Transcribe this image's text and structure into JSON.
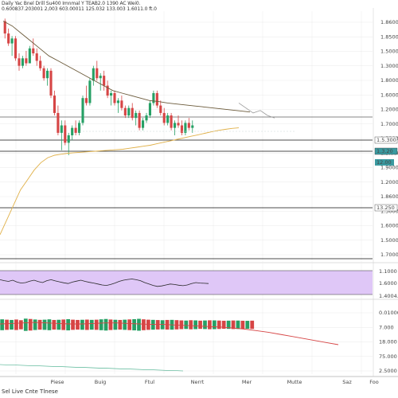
{
  "header": {
    "line1": "Daily Yac Bnel Drill  Su400  Imnmal Y TEAB2.0 1390 AC Wei0.",
    "line2": "0.600837.203001 2,003  603.00011 125.032 133.003 1.6011.0 ft.0"
  },
  "footer": {
    "text": "Sel Live  Cnte  Tlnese"
  },
  "colors": {
    "up": "#26a065",
    "down": "#d64545",
    "ma_long": "#e0b048",
    "ma_short": "#6b5a3a",
    "rsi_band": "#dfc7f7",
    "rsi_line": "#2a2a2a",
    "volume_ma": "#d64545",
    "volume_base": "#2aa37a",
    "grid": "#e9e9e9",
    "level_line": "#111111",
    "tag_teal": "#3a9aa0",
    "tag_dark": "#222222"
  },
  "chart_data": [
    {
      "type": "candlestick",
      "panel": "price",
      "title": "",
      "y_axis_labels": [
        "1.8600",
        "1.8500",
        "1.5000",
        "1.3000",
        "1.8000",
        "1.6000",
        "1.2000",
        "1.7000",
        "1.5200",
        "1.3.000",
        "1.9000",
        "1.2000",
        "1.8600",
        "1.3000",
        "1.6000",
        "1.5000",
        "1.7000"
      ],
      "price_tags": [
        "1.5.300",
        "12.00",
        "1.3.20",
        "13.250"
      ],
      "x_axis_labels": [
        "Piese",
        "Buig",
        "Ftul",
        "Nerrt",
        "Mer",
        "Mutte",
        "Saz",
        "Foo"
      ],
      "ylim": [
        1.45,
        1.95
      ],
      "grid": true,
      "candles": [
        [
          1.93,
          1.935,
          1.895,
          1.905
        ],
        [
          1.905,
          1.915,
          1.88,
          1.885
        ],
        [
          1.885,
          1.9,
          1.86,
          1.895
        ],
        [
          1.895,
          1.9,
          1.85,
          1.855
        ],
        [
          1.855,
          1.865,
          1.83,
          1.84
        ],
        [
          1.84,
          1.86,
          1.835,
          1.855
        ],
        [
          1.855,
          1.87,
          1.84,
          1.845
        ],
        [
          1.845,
          1.88,
          1.845,
          1.875
        ],
        [
          1.875,
          1.895,
          1.86,
          1.865
        ],
        [
          1.865,
          1.875,
          1.84,
          1.85
        ],
        [
          1.85,
          1.86,
          1.83,
          1.835
        ],
        [
          1.835,
          1.84,
          1.81,
          1.815
        ],
        [
          1.815,
          1.835,
          1.8,
          1.83
        ],
        [
          1.83,
          1.835,
          1.775,
          1.78
        ],
        [
          1.78,
          1.79,
          1.74,
          1.745
        ],
        [
          1.745,
          1.76,
          1.7,
          1.705
        ],
        [
          1.705,
          1.73,
          1.67,
          1.72
        ],
        [
          1.72,
          1.73,
          1.68,
          1.685
        ],
        [
          1.685,
          1.705,
          1.66,
          1.7
        ],
        [
          1.7,
          1.72,
          1.69,
          1.715
        ],
        [
          1.715,
          1.73,
          1.7,
          1.705
        ],
        [
          1.705,
          1.73,
          1.7,
          1.725
        ],
        [
          1.725,
          1.78,
          1.72,
          1.775
        ],
        [
          1.775,
          1.8,
          1.76,
          1.765
        ],
        [
          1.765,
          1.815,
          1.76,
          1.81
        ],
        [
          1.81,
          1.84,
          1.8,
          1.835
        ],
        [
          1.835,
          1.85,
          1.81,
          1.815
        ],
        [
          1.815,
          1.825,
          1.79,
          1.82
        ],
        [
          1.82,
          1.83,
          1.79,
          1.8
        ],
        [
          1.8,
          1.81,
          1.775,
          1.78
        ],
        [
          1.78,
          1.79,
          1.76,
          1.785
        ],
        [
          1.785,
          1.79,
          1.76,
          1.765
        ],
        [
          1.765,
          1.775,
          1.745,
          1.77
        ],
        [
          1.77,
          1.78,
          1.75,
          1.755
        ],
        [
          1.755,
          1.76,
          1.735,
          1.74
        ],
        [
          1.74,
          1.76,
          1.735,
          1.755
        ],
        [
          1.755,
          1.765,
          1.73,
          1.735
        ],
        [
          1.735,
          1.75,
          1.72,
          1.745
        ],
        [
          1.745,
          1.75,
          1.71,
          1.715
        ],
        [
          1.715,
          1.735,
          1.71,
          1.73
        ],
        [
          1.73,
          1.745,
          1.725,
          1.74
        ],
        [
          1.74,
          1.77,
          1.735,
          1.765
        ],
        [
          1.765,
          1.79,
          1.76,
          1.785
        ],
        [
          1.785,
          1.79,
          1.755,
          1.76
        ],
        [
          1.76,
          1.77,
          1.74,
          1.745
        ],
        [
          1.745,
          1.755,
          1.72,
          1.725
        ],
        [
          1.725,
          1.745,
          1.72,
          1.74
        ],
        [
          1.74,
          1.745,
          1.71,
          1.715
        ],
        [
          1.715,
          1.73,
          1.7,
          1.725
        ],
        [
          1.725,
          1.74,
          1.715,
          1.72
        ],
        [
          1.72,
          1.73,
          1.7,
          1.705
        ],
        [
          1.705,
          1.73,
          1.7,
          1.725
        ],
        [
          1.725,
          1.735,
          1.71,
          1.715
        ],
        [
          1.715,
          1.73,
          1.705,
          1.72
        ]
      ],
      "overlays": [
        {
          "name": "",
          "kind": "ma_long",
          "values": [
            1.5,
            1.53,
            1.56,
            1.59,
            1.61,
            1.63,
            1.645,
            1.655,
            1.66,
            1.662,
            1.664,
            1.665,
            1.666,
            1.667,
            1.668,
            1.669,
            1.67,
            1.671,
            1.672,
            1.674,
            1.676,
            1.678,
            1.68,
            1.683,
            1.686,
            1.689,
            1.692,
            1.695,
            1.698,
            1.701,
            1.704,
            1.707,
            1.71,
            1.712,
            1.714,
            1.715
          ]
        },
        {
          "name": "",
          "kind": "ma_short",
          "values": [
            1.93,
            1.92,
            1.905,
            1.89,
            1.875,
            1.86,
            1.85,
            1.84,
            1.83,
            1.82,
            1.81,
            1.8,
            1.79,
            1.785,
            1.78,
            1.775,
            1.77,
            1.768,
            1.765,
            1.763,
            1.761,
            1.759,
            1.757,
            1.755,
            1.753,
            1.751,
            1.749,
            1.747
          ]
        }
      ],
      "forecast_path": [
        1.765,
        1.755,
        1.745,
        1.75,
        1.74,
        1.735
      ]
    },
    {
      "type": "line",
      "panel": "rsi",
      "y_axis_labels": [
        "1.1000",
        "1.6000",
        "1.4004.0"
      ],
      "values": [
        0.62,
        0.58,
        0.55,
        0.6,
        0.52,
        0.48,
        0.5,
        0.56,
        0.6,
        0.54,
        0.5,
        0.58,
        0.62,
        0.57,
        0.53,
        0.49,
        0.46,
        0.52,
        0.56,
        0.6,
        0.55,
        0.51,
        0.48,
        0.44,
        0.4,
        0.38,
        0.42,
        0.48,
        0.55,
        0.6,
        0.63,
        0.65,
        0.62,
        0.58,
        0.5,
        0.44,
        0.38,
        0.34,
        0.36,
        0.4,
        0.44,
        0.42,
        0.39,
        0.37,
        0.4,
        0.46,
        0.5,
        0.48,
        0.47,
        0.46
      ]
    },
    {
      "type": "bar",
      "panel": "volume",
      "y_axis_labels": [
        "0.01000",
        "7.000",
        "18.000",
        "75.000",
        "2.5000"
      ],
      "values": [
        0.62,
        0.58,
        0.55,
        0.6,
        0.52,
        0.7,
        0.66,
        0.6,
        0.56,
        0.58,
        0.62,
        0.55,
        0.57,
        0.6,
        0.64,
        0.58,
        0.55,
        0.57,
        0.59,
        0.56,
        0.58,
        0.62,
        0.66,
        0.6,
        0.57,
        0.55,
        0.58,
        0.61,
        0.64,
        0.68,
        0.62,
        0.58,
        0.56,
        0.54,
        0.52,
        0.55,
        0.56,
        0.53,
        0.5,
        0.48,
        0.52,
        0.5,
        0.47,
        0.49,
        0.51,
        0.5,
        0.48,
        0.46,
        0.47,
        0.49,
        0.48,
        0.46,
        0.45,
        0.47
      ],
      "up_flags": [
        1,
        0,
        1,
        0,
        0,
        1,
        0,
        1,
        0,
        1,
        1,
        0,
        1,
        0,
        1,
        0,
        0,
        1,
        0,
        1,
        0,
        1,
        1,
        0,
        1,
        0,
        1,
        0,
        1,
        1,
        0,
        0,
        1,
        0,
        1,
        0,
        1,
        0,
        0,
        1,
        0,
        1,
        0,
        1,
        0,
        1,
        0,
        0,
        1,
        0,
        1,
        0,
        1,
        0
      ],
      "ma_values": [
        0.6,
        0.61,
        0.62,
        0.63,
        0.62,
        0.61,
        0.6,
        0.6,
        0.61,
        0.62,
        0.62,
        0.61,
        0.6,
        0.59,
        0.59,
        0.58,
        0.57,
        0.56,
        0.55,
        0.54,
        0.52,
        0.5,
        0.47,
        0.44,
        0.4,
        0.36,
        0.32,
        0.28,
        0.24,
        0.2
      ]
    }
  ]
}
